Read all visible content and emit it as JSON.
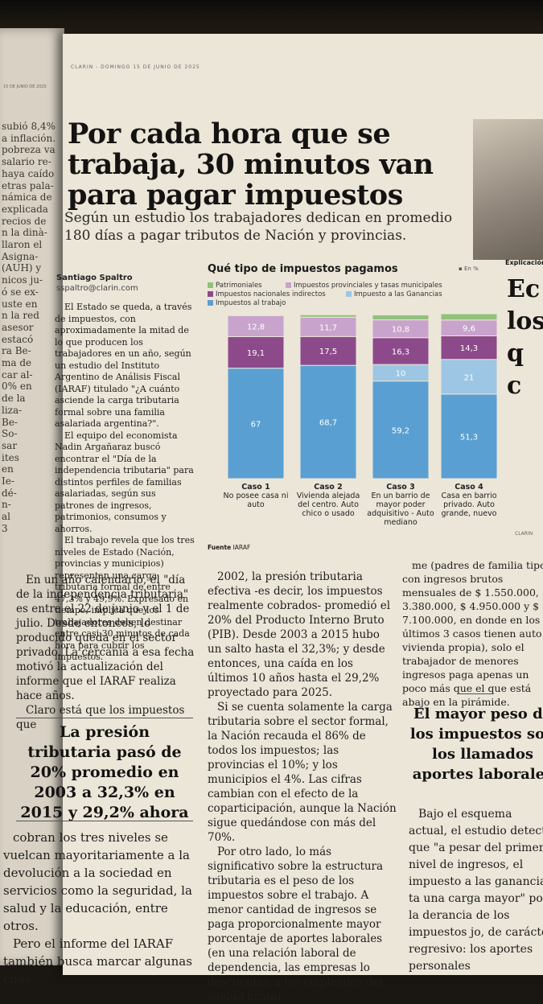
{
  "left_page": {
    "date": "15 DE JUNIO DE 2025",
    "fragments": [
      "subió 8,4%",
      "a inflación.",
      "pobreza va",
      "salario re-",
      "haya caído",
      "etras pala-",
      "námica de",
      "explicada",
      "recios de",
      "n la dinà-",
      "llaron el",
      "Asigna-",
      "(AUH) y",
      "nicos ju-",
      "ó se ex-",
      "uste en",
      "n la red",
      "asesor",
      "estacó",
      "ra Be-",
      "ma de",
      "car al-",
      "0% en",
      "de la",
      "liza-",
      "Be-",
      "So-",
      "sar",
      "ites",
      "en",
      "Ie-",
      "dé-",
      "n-",
      "al",
      "3"
    ]
  },
  "running_head": "CLARIN - DOMINGO 15 DE JUNIO DE 2025",
  "article": {
    "headline": "Por cada hora que se trabaja, 30 minutos van para pagar impuestos",
    "subhead": "Según un estudio los trabajadores dedican en promedio 180 días a pagar tributos de Nación y provincias.",
    "author": "Santiago Spaltro",
    "email": "sspaltro@clarin.com",
    "col1": [
      "El Estado se queda, a través de impuestos, con aproximadamente la mitad de lo que producen los trabajadores en un año, según un estudio del Instituto Argentino de Análisis Fiscal (IARAF) titulado \"¿A cuánto asciende la carga tributaria formal sobre una familia asalariada argentina?\".",
      "El equipo del economista Nadin Argañaraz buscó encontrar el \"Día de la independencia tributaria\" para distintos perfiles de familias asalariadas, según sus patrones de ingresos, patrimonios, consumos y ahorros.",
      "El trabajo revela que los tres niveles de Estado (Nación, provincias y municipios) representan una carga tributaria formal de entre 47,3% y 49,9%. Expresado en tiempo, implica que los trabajadores deben destinar entre casi 30 minutos de cada hora para cubrir los impuestos."
    ],
    "col1b": [
      "En un año calendario, el \"día de la independencia tributaria\" es entre el 22 de junio y el 1 de julio. Desde entonces, lo producido queda en el sector privado. La cercanía a esa fecha motivó la actualización del informe que el IARAF realiza hace años.",
      "Claro está que los impuestos que"
    ],
    "pullquote": "La presión tributaria pasó de 20% promedio en 2003 a 32,3% en 2015 y 29,2% ahora",
    "col1c": [
      "cobran los tres niveles se vuelcan mayoritariamente a la devolución a la sociedad en servicios como la seguridad, la salud y la educación, entre otros.",
      "Pero el informe del IARAF también busca marcar algunas cues-"
    ],
    "col2": [
      "2002, la presión tributaria efectiva -es decir, los impuestos realmente cobrados- promedió el 20% del Producto Interno Bruto (PIB). Desde 2003 a 2015 hubo un salto hasta el 32,3%; y desde entonces, una caída en los últimos 10 años hasta el 29,2% proyectado para 2025.",
      "Si se cuenta solamente la carga tributaria sobre el sector formal, la Nación recauda el 86% de todos los impuestos; las provincias el 10%; y los municipios el 4%. Las cifras cambian con el efecto de la coparticipación, aunque la Nación sigue quedándose con más del 70%.",
      "Por otro lado, lo más significativo sobre la estructura tributaria es el peso de los impuestos sobre el trabajo. A menor cantidad de ingresos se paga proporcionalmente mayor porcentaje de aportes laborales (en una relación laboral de dependencia, las empresas lo descuentan a los empleados del sueldo bruto),"
    ],
    "col3": [
      "me (padres de familia tipo con ingresos brutos mensuales de $ 1.550.000, $ 3.380.000, $ 4.950.000 y $ 7.100.000, en donde en los últimos 3 casos tienen auto y vivienda propia), solo el trabajador de menores ingresos paga apenas un poco más que el que está abajo en la pirámide."
    ],
    "sidehead": "El mayor peso de los impuestos son los llamados aportes laborales",
    "col3b": [
      "Bajo el esquema actual, el estudio detectó que \"a pesar del primer nivel de ingresos, el impuesto a las ganancias ta una carga mayor\" por la derancia de los impuestos jo, de carácter regresivo: los aportes personales"
    ],
    "photo_caption": "Explicación",
    "side_big_letters": [
      "Ec",
      "los",
      "q",
      "c"
    ]
  },
  "chart_data": {
    "type": "bar",
    "title": "Qué tipo de impuestos pagamos",
    "unit_note": "En %",
    "categories": [
      "Caso 1",
      "Caso 2",
      "Caso 3",
      "Caso 4"
    ],
    "category_descriptions": [
      "No posee casa ni auto",
      "Vivienda alejada del centro. Auto chico o usado",
      "En un barrio de mayor poder adquisitivo - Auto mediano",
      "Casa en barrio privado. Auto grande, nuevo"
    ],
    "series": [
      {
        "name": "Impuestos al trabajo",
        "color": "#5a9fd2",
        "values": [
          67,
          68.7,
          59.2,
          51.3
        ],
        "labels": [
          "67",
          "68,7",
          "59,2",
          "51,3"
        ]
      },
      {
        "name": "Impuesto a las Ganancias",
        "color": "#9cc6e3",
        "values": [
          0,
          0,
          10,
          21
        ],
        "labels": [
          "",
          "",
          "10",
          "21"
        ]
      },
      {
        "name": "Impuestos nacionales indirectos",
        "color": "#8d4a8a",
        "values": [
          19.1,
          17.5,
          16.3,
          14.3
        ],
        "labels": [
          "19,1",
          "17,5",
          "16,3",
          "14,3"
        ]
      },
      {
        "name": "Impuestos provinciales y tasas municipales",
        "color": "#c8a3cc",
        "values": [
          12.8,
          11.7,
          10.8,
          9.6
        ],
        "labels": [
          "12,8",
          "11,7",
          "10,8",
          "9,6"
        ]
      },
      {
        "name": "Patrimoniales",
        "color": "#8fc27a",
        "values": [
          0.5,
          1.5,
          3.0,
          3.8
        ],
        "labels": [
          "",
          "",
          "",
          ""
        ]
      }
    ],
    "legend_order": [
      "Patrimoniales",
      "Impuestos provinciales y tasas municipales",
      "Impuestos nacionales indirectos",
      "Impuesto a las Ganancias",
      "Impuestos al trabajo"
    ],
    "source_label": "Fuente",
    "source": "IARAF",
    "credit": "CLARIN"
  }
}
